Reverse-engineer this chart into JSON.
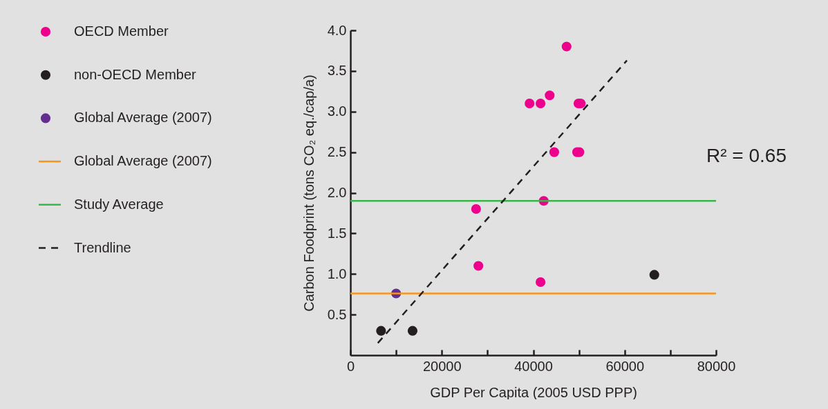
{
  "chart_data": {
    "type": "scatter",
    "xlabel": "GDP Per Capita (2005 USD PPP)",
    "ylabel": "Carbon Foodprint (tons CO₂ eq./cap/a)",
    "annotations": [
      "R² = 0.65"
    ],
    "xlim": [
      0,
      80000
    ],
    "ylim": [
      0,
      4
    ],
    "xticks": [
      0,
      {
        "value": 10000,
        "label": null
      },
      20000,
      {
        "value": 30000,
        "label": null
      },
      40000,
      {
        "value": 50000,
        "label": null
      },
      60000,
      {
        "value": 70000,
        "label": null
      },
      80000
    ],
    "yticks": [
      0.5,
      {
        "value": 1,
        "label": "1.0"
      },
      1.5,
      {
        "value": 2,
        "label": "2.0"
      },
      2.5,
      {
        "value": 3,
        "label": "3.0"
      },
      3.5,
      {
        "value": 4,
        "label": "4.0"
      }
    ],
    "legend": "left",
    "series": [
      {
        "name": "OECD Member",
        "color": "#ec008c",
        "x": [
          27500,
          28000,
          39200,
          41600,
          43600,
          47300,
          44600,
          42300,
          41600,
          49600,
          50100,
          49900,
          50400
        ],
        "values": [
          1.8,
          1.1,
          3.1,
          3.1,
          3.2,
          3.8,
          2.5,
          1.9,
          0.9,
          2.5,
          2.5,
          3.1,
          3.1
        ]
      },
      {
        "name": "non-OECD Member",
        "color": "#231f20",
        "x": [
          6700,
          13600,
          66500
        ],
        "values": [
          0.3,
          0.3,
          0.99
        ]
      },
      {
        "name": "Global Average (2007)",
        "color": "#662d91",
        "x": [
          10000
        ],
        "values": [
          0.76
        ]
      },
      {
        "name": "Global Average (2007)",
        "type": "line",
        "color": "#f7941d",
        "x": [
          0,
          80000
        ],
        "values": [
          0.76,
          0.76
        ]
      },
      {
        "name": "Study Average",
        "type": "line",
        "color": "#39b54a",
        "x": [
          0,
          80000
        ],
        "values": [
          1.9,
          1.9
        ]
      },
      {
        "name": "Trendline",
        "type": "line",
        "color": "#231f20",
        "line_style": "dashed",
        "x": [
          6000,
          60500
        ],
        "values": [
          0.15,
          3.63
        ]
      }
    ]
  }
}
